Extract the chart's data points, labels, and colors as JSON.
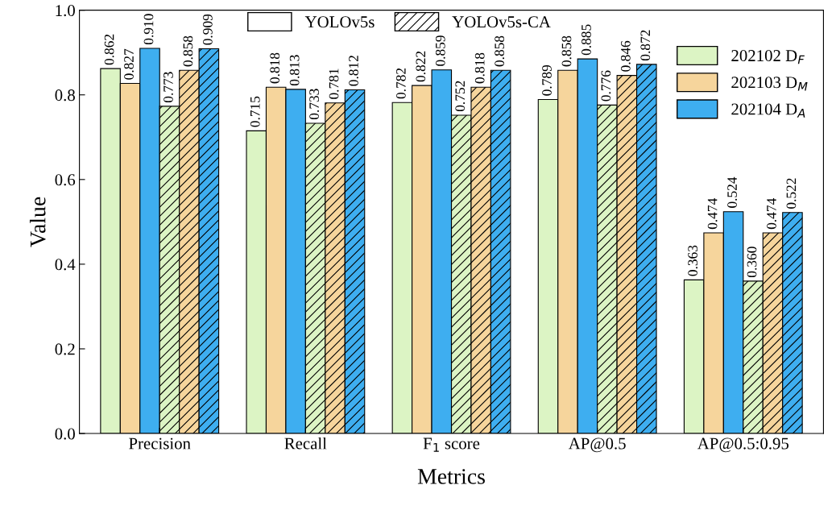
{
  "chart_data": {
    "type": "bar",
    "xlabel": "Metrics",
    "ylabel": "Value",
    "categories": [
      "Precision",
      "Recall",
      "F$_{1}$ score",
      "AP@0.5",
      "AP@0.5:0.95"
    ],
    "series": [
      {
        "name": "202102 D$_{F}$",
        "color": "#dcf4c4",
        "values": [
          0.862,
          0.715,
          0.782,
          0.789,
          0.363
        ],
        "value_labels": [
          "0.862",
          "0.715",
          "0.782",
          "0.789",
          "0.363"
        ]
      },
      {
        "name": "202103 D$_{M}$",
        "color": "#f6d59c",
        "values": [
          0.827,
          0.818,
          0.822,
          0.858,
          0.474
        ],
        "value_labels": [
          "0.827",
          "0.818",
          "0.822",
          "0.858",
          "0.474"
        ]
      },
      {
        "name": "202104 D$_{A}$",
        "color": "#3eaef0",
        "values": [
          0.91,
          0.813,
          0.859,
          0.885,
          0.524
        ],
        "value_labels": [
          "0.910",
          "0.813",
          "0.859",
          "0.885",
          "0.524"
        ]
      },
      {
        "color": "#dcf4c4",
        "values": [
          0.773,
          0.733,
          0.752,
          0.776,
          0.36
        ],
        "value_labels": [
          "0.773",
          "0.733",
          "0.752",
          "0.776",
          "0.360"
        ]
      },
      {
        "color": "#f6d59c",
        "values": [
          0.858,
          0.781,
          0.818,
          0.846,
          0.474
        ],
        "value_labels": [
          "0.858",
          "0.781",
          "0.818",
          "0.846",
          "0.474"
        ]
      },
      {
        "color": "#3eaef0",
        "values": [
          0.909,
          0.812,
          0.858,
          0.872,
          0.522
        ],
        "value_labels": [
          "0.909",
          "0.812",
          "0.858",
          "0.872",
          "0.522"
        ]
      }
    ],
    "annotations": [
      "YOLOv5s",
      "YOLOv5s-CA"
    ],
    "ylim": [
      0,
      1.0
    ],
    "yticks": [
      {
        "value": 0,
        "label": "0.0"
      },
      {
        "value": 0.2,
        "label": "0.2"
      },
      {
        "value": 0.4,
        "label": "0.4"
      },
      {
        "value": 0.6,
        "label": "0.6"
      },
      {
        "value": 0.8,
        "label": "0.8"
      },
      {
        "value": 1.0,
        "label": "1.0"
      }
    ],
    "legend": "top right",
    "grid": false
  }
}
